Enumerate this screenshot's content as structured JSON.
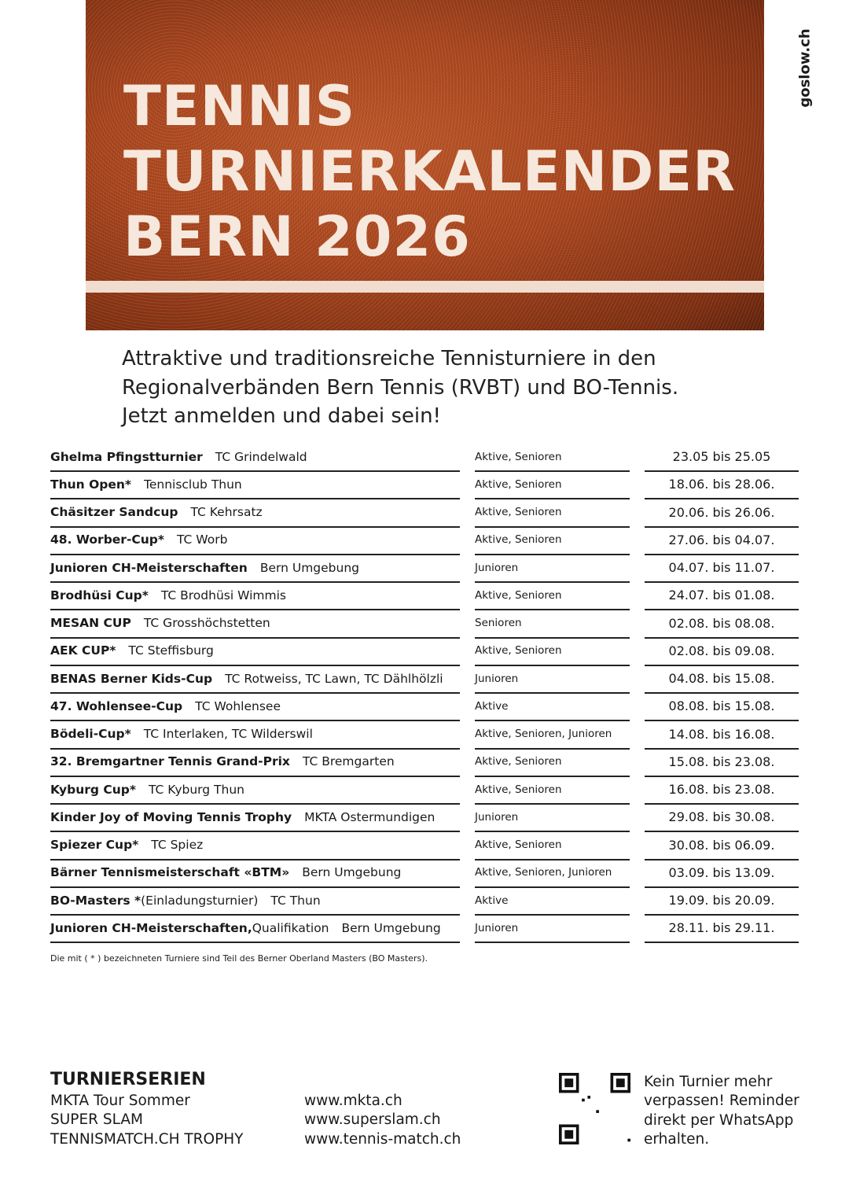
{
  "header": {
    "title_lines": [
      "TENNIS",
      "TURNIERKALENDER",
      "BERN 2026"
    ],
    "brand": "goslow.ch",
    "accent": "#a9461f"
  },
  "intro": [
    "Attraktive und traditionsreiche Tennisturniere in den",
    "Regionalverbänden Bern Tennis (RVBT) und BO-Tennis.",
    "Jetzt anmelden und dabei sein!"
  ],
  "tournaments": [
    {
      "name": "Ghelma Pfingstturnier",
      "suffix": "",
      "club": "TC Grindelwald",
      "category": "Aktive, Senioren",
      "dates": "23.05 bis 25.05"
    },
    {
      "name": "Thun Open*",
      "suffix": "",
      "club": "Tennisclub Thun",
      "category": "Aktive, Senioren",
      "dates": "18.06. bis 28.06."
    },
    {
      "name": "Chäsitzer Sandcup",
      "suffix": "",
      "club": "TC Kehrsatz",
      "category": "Aktive, Senioren",
      "dates": "20.06. bis 26.06."
    },
    {
      "name": "48. Worber-Cup*",
      "suffix": "",
      "club": "TC Worb",
      "category": "Aktive, Senioren",
      "dates": "27.06. bis 04.07."
    },
    {
      "name": "Junioren CH-Meisterschaften",
      "suffix": "",
      "club": "Bern Umgebung",
      "category": "Junioren",
      "dates": "04.07. bis 11.07."
    },
    {
      "name": "Brodhüsi Cup*",
      "suffix": "",
      "club": "TC Brodhüsi Wimmis",
      "category": "Aktive, Senioren",
      "dates": "24.07. bis 01.08."
    },
    {
      "name": "MESAN CUP",
      "suffix": "",
      "club": "TC Grosshöchstetten",
      "category": "Senioren",
      "dates": "02.08. bis 08.08."
    },
    {
      "name": "AEK CUP*",
      "suffix": "",
      "club": "TC Steffisburg",
      "category": "Aktive, Senioren",
      "dates": "02.08. bis 09.08."
    },
    {
      "name": "BENAS Berner Kids-Cup",
      "suffix": "",
      "club": "TC Rotweiss, TC Lawn, TC Dählhölzli",
      "category": "Junioren",
      "dates": "04.08. bis 15.08."
    },
    {
      "name": "47. Wohlensee-Cup",
      "suffix": "",
      "club": "TC Wohlensee",
      "category": "Aktive",
      "dates": "08.08. bis 15.08."
    },
    {
      "name": "Bödeli-Cup*",
      "suffix": "",
      "club": "TC Interlaken, TC Wilderswil",
      "category": "Aktive, Senioren, Junioren",
      "dates": "14.08. bis 16.08."
    },
    {
      "name": "32. Bremgartner Tennis Grand-Prix",
      "suffix": "",
      "club": "TC Bremgarten",
      "category": "Aktive, Senioren",
      "dates": "15.08. bis 23.08."
    },
    {
      "name": "Kyburg Cup*",
      "suffix": "",
      "club": "TC Kyburg Thun",
      "category": "Aktive, Senioren",
      "dates": "16.08. bis 23.08."
    },
    {
      "name": "Kinder Joy of Moving Tennis Trophy",
      "suffix": "",
      "club": "MKTA  Ostermundigen",
      "category": "Junioren",
      "dates": "29.08. bis 30.08."
    },
    {
      "name": "Spiezer Cup*",
      "suffix": "",
      "club": "TC Spiez",
      "category": "Aktive, Senioren",
      "dates": "30.08. bis 06.09."
    },
    {
      "name": "Bärner Tennismeisterschaft «BTM»",
      "suffix": "",
      "club": "Bern Umgebung",
      "category": "Aktive, Senioren, Junioren",
      "dates": "03.09. bis 13.09."
    },
    {
      "name": "BO-Masters *",
      "suffix": " (Einladungsturnier)",
      "club": "TC Thun",
      "category": "Aktive",
      "dates": "19.09. bis 20.09."
    },
    {
      "name": "Junioren CH-Meisterschaften,",
      "suffix": " Qualifikation",
      "club": "Bern Umgebung",
      "category": "Junioren",
      "dates": "28.11. bis 29.11."
    }
  ],
  "note": "Die mit ( * ) bezeichneten Turniere sind Teil des Berner Oberland Masters (BO Masters).",
  "footer": {
    "series_heading": "TURNIERSERIEN",
    "series": [
      "MKTA Tour Sommer",
      "SUPER SLAM",
      "TENNISMATCH.CH TROPHY"
    ],
    "links": [
      "www.mkta.ch",
      "www.superslam.ch",
      "www.tennis-match.ch"
    ],
    "reminder": [
      "Kein Turnier mehr",
      "verpassen! Reminder",
      "direkt per WhatsApp",
      "erhalten."
    ]
  }
}
